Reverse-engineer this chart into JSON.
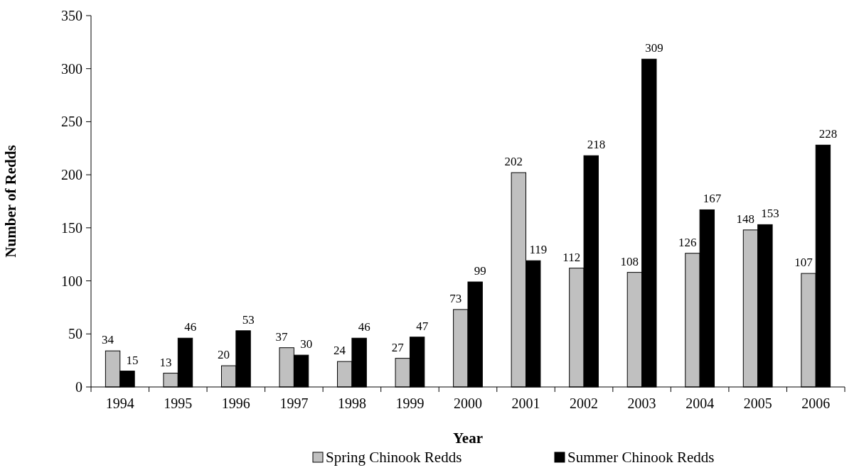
{
  "chart_data": {
    "type": "bar",
    "xlabel": "Year",
    "ylabel": "Number of Redds",
    "categories": [
      "1994",
      "1995",
      "1996",
      "1997",
      "1998",
      "1999",
      "2000",
      "2001",
      "2002",
      "2003",
      "2004",
      "2005",
      "2006"
    ],
    "series": [
      {
        "name": "Spring Chinook Redds",
        "color": "#c0c0c0",
        "values": [
          34,
          13,
          20,
          37,
          24,
          27,
          73,
          202,
          112,
          108,
          126,
          148,
          107
        ]
      },
      {
        "name": "Summer Chinook Redds",
        "color": "#000000",
        "values": [
          15,
          46,
          53,
          30,
          46,
          47,
          99,
          119,
          218,
          309,
          167,
          153,
          228
        ]
      }
    ],
    "ylim": [
      0,
      350
    ],
    "yticks": [
      0,
      50,
      100,
      150,
      200,
      250,
      300,
      350
    ],
    "data_labels": true,
    "legend": "bottom",
    "grid": false
  }
}
